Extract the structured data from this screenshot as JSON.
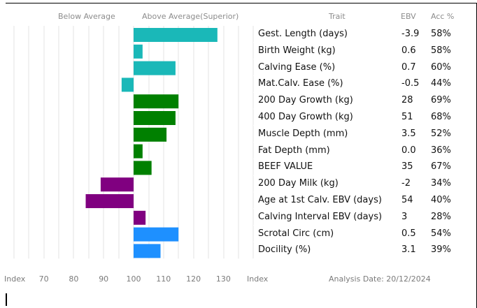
{
  "header": {
    "below_label": "Below Average",
    "above_label": "Above Average(Superior)",
    "trait_col": "Trait",
    "ebv_col": "EBV",
    "acc_col": "Acc %"
  },
  "footer": {
    "index_left": "Index",
    "index_right": "Index",
    "analysis_date": "Analysis Date: 20/12/2024"
  },
  "chart_data": {
    "type": "bar",
    "orientation": "horizontal",
    "baseline": 100,
    "xlim": [
      60,
      135
    ],
    "xticks": [
      70,
      80,
      90,
      100,
      110,
      120,
      130
    ],
    "grid": true,
    "categories": [
      "Gest. Length (days)",
      "Birth Weight (kg)",
      "Calving Ease (%)",
      "Mat.Calv. Ease (%)",
      "200 Day Growth (kg)",
      "400 Day Growth (kg)",
      "Muscle Depth (mm)",
      "Fat Depth (mm)",
      "BEEF VALUE",
      "200 Day Milk (kg)",
      "Age at 1st Calv. EBV (days)",
      "Calving Interval EBV (days)",
      "Scrotal Circ (cm)",
      "Docility (%)"
    ],
    "values": [
      128,
      103,
      114,
      96,
      115,
      114,
      111,
      103,
      106,
      89,
      84,
      104,
      115,
      109
    ],
    "colors": [
      "#1ab8b8",
      "#1ab8b8",
      "#1ab8b8",
      "#1ab8b8",
      "#008000",
      "#008000",
      "#008000",
      "#008000",
      "#008000",
      "#800080",
      "#800080",
      "#800080",
      "#1e90ff",
      "#1e90ff"
    ],
    "ebv": [
      "-3.9",
      "0.6",
      "0.7",
      "-0.5",
      "28",
      "51",
      "3.5",
      "0.0",
      "35",
      "-2",
      "54",
      "3",
      "0.5",
      "3.1"
    ],
    "acc": [
      "58%",
      "58%",
      "60%",
      "44%",
      "69%",
      "68%",
      "52%",
      "36%",
      "67%",
      "34%",
      "40%",
      "28%",
      "54%",
      "39%"
    ]
  }
}
